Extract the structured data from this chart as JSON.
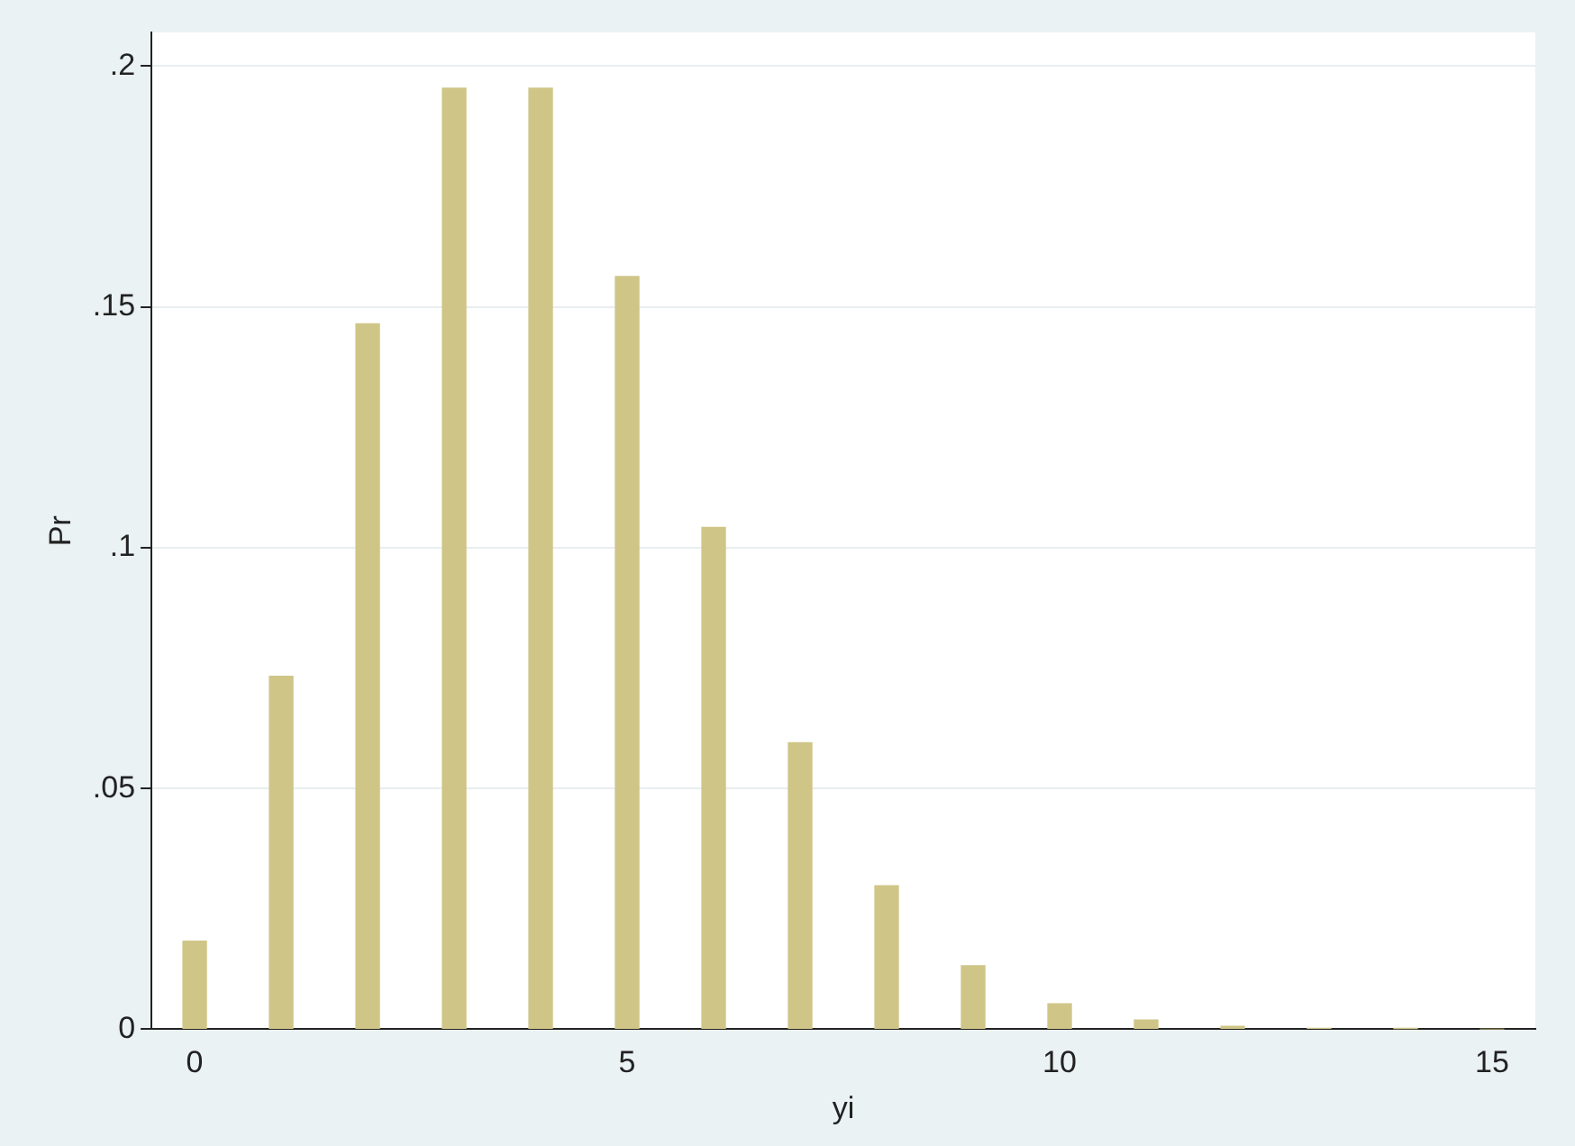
{
  "chart_data": {
    "type": "bar",
    "xlabel": "yi",
    "ylabel": "Pr",
    "categories": [
      "0",
      null,
      null,
      null,
      null,
      "5",
      null,
      null,
      null,
      null,
      "10",
      null,
      null,
      null,
      null,
      "15"
    ],
    "values": [
      0.0183,
      0.0733,
      0.1465,
      0.1954,
      0.1954,
      0.1563,
      0.1042,
      0.0595,
      0.0298,
      0.0132,
      0.0053,
      0.0019,
      0.0006,
      0.0002,
      0.0001,
      0.0
    ],
    "color": "#cfc587",
    "ylim": [
      0,
      0.207
    ],
    "yticks": [
      {
        "value": 0,
        "label": "0"
      },
      {
        "value": 0.05,
        "label": ".05"
      },
      {
        "value": 0.1,
        "label": ".1"
      },
      {
        "value": 0.15,
        "label": ".15"
      },
      {
        "value": 0.2,
        "label": ".2"
      }
    ],
    "grid": "y",
    "legend": false
  }
}
